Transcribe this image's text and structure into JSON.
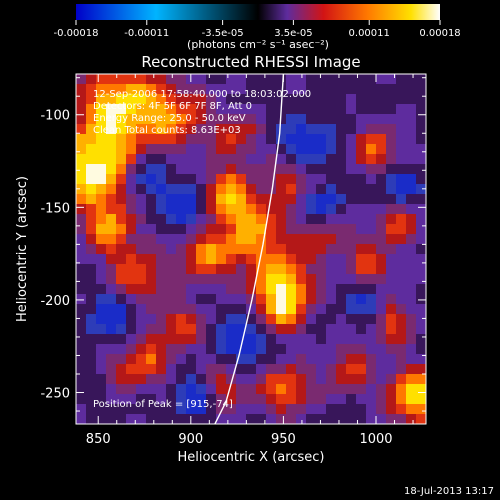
{
  "chart_data": {
    "type": "heatmap",
    "title": "Reconstructed RHESSI Image",
    "xlabel": "Heliocentric X (arcsec)",
    "ylabel": "Heliocentric Y (arcsec)",
    "xlim": [
      838,
      1027
    ],
    "ylim": [
      -267,
      -78
    ],
    "xticks": [
      850,
      900,
      950,
      1000
    ],
    "yticks": [
      -100,
      -150,
      -200,
      -250
    ],
    "colorbar": {
      "range": [
        -0.00018,
        0.00018
      ],
      "ticks": [
        "-0.00018",
        "-0.00011",
        "-3.5e-05",
        "3.5e-05",
        "0.00011",
        "0.00018"
      ],
      "tick_values": [
        -0.00018,
        -0.00011,
        -3.5e-05,
        3.5e-05,
        0.00011,
        0.00018
      ],
      "label": "(photons cm⁻² s⁻¹ asec⁻²)",
      "colors": [
        "#0000c8",
        "#00b4ff",
        "#000000",
        "#5e2c9e",
        "#d21414",
        "#ff7800",
        "#ffe000",
        "#ffffff"
      ]
    },
    "annotations": [
      "12-Sep-2006 17:58:40.000 to 18:03:02.000",
      "Detectors: 4F 5F 6F 7F 8F, Att 0",
      "Energy Range: 25.0 - 50.0 keV",
      "Clean    Total counts: 8.63E+03",
      "Position of Peak = [915,-74]"
    ],
    "peak": {
      "x": 915,
      "y": -74
    },
    "limb_curve": {
      "x": [
        950,
        948,
        944,
        939,
        933,
        926,
        919,
        913
      ],
      "y": [
        -78,
        -110,
        -140,
        -170,
        -200,
        -230,
        -255,
        -267
      ]
    },
    "grid": false
  },
  "footer": {
    "timestamp": "18-Jul-2013 13:17"
  }
}
